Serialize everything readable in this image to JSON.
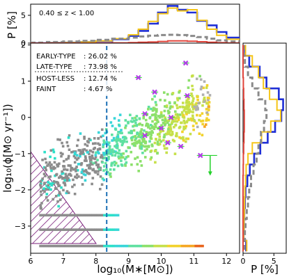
{
  "chart_data": [
    {
      "type": "scatter",
      "panel": "main",
      "xlabel": "log₁₀(M∗[M⊙])",
      "ylabel": "log₁₀(ϕ[M⊙ yr⁻¹])",
      "xlim": [
        6.0,
        12.4
      ],
      "ylim": [
        -3.75,
        2.05
      ],
      "xticks": [
        "6",
        "7",
        "8",
        "9",
        "10",
        "11",
        "12"
      ],
      "yticks": [
        "−3",
        "−2",
        "−1",
        "0",
        "1",
        "2"
      ],
      "xtick_values": [
        6,
        7,
        8,
        9,
        10,
        11,
        12
      ],
      "ytick_values": [
        -3,
        -2,
        -1,
        0,
        1,
        2
      ],
      "completeness_cut_x": 8.33,
      "legend": [
        {
          "label": "EARLY-TYPE",
          "value": ": 26.02  %"
        },
        {
          "label": "LATE-TYPE",
          "value": ": 73.98 %"
        },
        {
          "label": "HOST-LESS",
          "value": ": 12.74  %"
        },
        {
          "label": "FAINT",
          "value": ": 4.67  %"
        }
      ],
      "highlight_points": [
        {
          "x": 9.3,
          "y": 1.1
        },
        {
          "x": 10.75,
          "y": 1.5
        },
        {
          "x": 9.8,
          "y": 0.7
        },
        {
          "x": 10.8,
          "y": 0.6
        },
        {
          "x": 9.5,
          "y": 0.1
        },
        {
          "x": 10.3,
          "y": 0.0
        },
        {
          "x": 10.0,
          "y": -0.3
        },
        {
          "x": 9.5,
          "y": -0.5
        },
        {
          "x": 10.2,
          "y": -0.7
        },
        {
          "x": 10.6,
          "y": -0.8
        },
        {
          "x": 11.2,
          "y": -1.05
        }
      ],
      "upper_limit_point": {
        "x": 11.5,
        "y": -1.05
      }
    },
    {
      "type": "line",
      "panel": "top",
      "annotation": "0.40 ≤ z < 1.00",
      "ylabel": "P [%]",
      "yticks": [
        "0",
        "5"
      ],
      "ytick_values": [
        0,
        5
      ],
      "ylim": [
        0,
        7
      ],
      "x": [
        6.0,
        6.5,
        7.0,
        7.5,
        8.0,
        8.5,
        9.0,
        9.3,
        9.6,
        9.9,
        10.2,
        10.5,
        10.8,
        11.1,
        11.4,
        11.7,
        12.0,
        12.4
      ],
      "series": [
        {
          "color": "#1f2fd6",
          "values": [
            0,
            0.05,
            0.1,
            0.2,
            0.35,
            0.7,
            1.3,
            2.2,
            3.5,
            5.5,
            6.7,
            6.0,
            5.5,
            4.0,
            3.2,
            2.0,
            1.0,
            0.3
          ]
        },
        {
          "color": "#f5c518",
          "values": [
            0,
            0.05,
            0.1,
            0.2,
            0.4,
            0.8,
            1.5,
            2.5,
            3.9,
            5.3,
            6.3,
            5.8,
            6.0,
            4.1,
            2.5,
            1.4,
            0.7,
            0.2
          ]
        },
        {
          "color": "#8a8a8a",
          "dashed": true,
          "values": [
            0.1,
            0.2,
            0.3,
            0.4,
            0.6,
            0.8,
            1.0,
            1.2,
            1.35,
            1.45,
            1.5,
            1.45,
            1.3,
            1.1,
            0.8,
            0.5,
            0.3,
            0.1
          ]
        },
        {
          "color": "#e0433a",
          "values": [
            0,
            0,
            0,
            0,
            0.02,
            0.05,
            0.1,
            0.15,
            0.2,
            0.3,
            0.4,
            0.4,
            0.35,
            0.25,
            0.15,
            0.08,
            0.03,
            0
          ]
        }
      ]
    },
    {
      "type": "line",
      "panel": "right",
      "xlabel": "P [%]",
      "xticks": [
        "0",
        "5"
      ],
      "xtick_values": [
        0,
        5
      ],
      "xlim": [
        0,
        7
      ],
      "y": [
        2.0,
        1.7,
        1.4,
        1.1,
        0.8,
        0.5,
        0.2,
        -0.1,
        -0.4,
        -0.7,
        -1.0,
        -1.3,
        -1.6,
        -1.9,
        -2.2,
        -2.5,
        -2.8,
        -3.1,
        -3.4,
        -3.7
      ],
      "series": [
        {
          "color": "#1f2fd6",
          "values": [
            0.3,
            1.0,
            2.7,
            3.8,
            5.8,
            6.5,
            6.2,
            5.2,
            4.0,
            2.8,
            1.8,
            1.1,
            0.7,
            0.4,
            0.3,
            0.2,
            0.15,
            0.1,
            0.5,
            0.6
          ]
        },
        {
          "color": "#f5c518",
          "values": [
            0.4,
            1.5,
            2.5,
            3.3,
            4.3,
            5.5,
            6.1,
            4.5,
            3.0,
            1.5,
            0.8,
            0.5,
            0.4,
            0.3,
            0.25,
            0.2,
            0.15,
            0.1,
            0.6,
            0.7
          ]
        },
        {
          "color": "#8a8a8a",
          "dashed": true,
          "values": [
            0.1,
            0.3,
            0.8,
            1.5,
            2.5,
            3.6,
            3.8,
            3.4,
            2.9,
            2.5,
            2.2,
            1.7,
            1.3,
            1.0,
            0.8,
            0.6,
            0.4,
            0.3,
            0.2,
            0.1
          ]
        },
        {
          "color": "#e0433a",
          "values": [
            0,
            0,
            0,
            0.05,
            0.1,
            0.15,
            0.2,
            0.2,
            0.15,
            0.1,
            0.05,
            0.03,
            0,
            0,
            0,
            0,
            0,
            0,
            0,
            0
          ]
        }
      ]
    }
  ]
}
